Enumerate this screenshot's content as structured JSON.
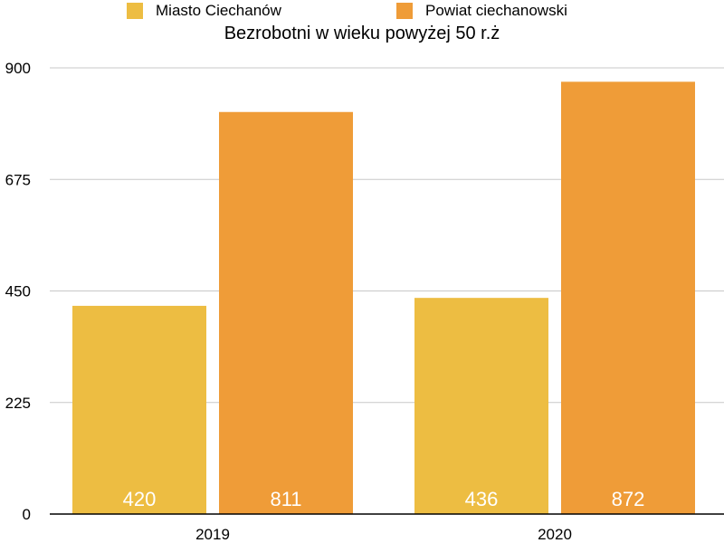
{
  "chart_data": {
    "type": "bar",
    "title": "Bezrobotni w wieku powyżej 50 r.ż",
    "categories": [
      "2019",
      "2020"
    ],
    "series": [
      {
        "name": "Miasto Ciechanów",
        "values": [
          420,
          436
        ],
        "color": "#EDBD42"
      },
      {
        "name": "Powiat ciechanowski",
        "values": [
          811,
          872
        ],
        "color": "#EF9C38"
      }
    ],
    "yticks": [
      "0",
      "225",
      "450",
      "675",
      "900"
    ],
    "ylim": [
      0,
      900
    ],
    "grid": true,
    "legend_position": "top"
  }
}
